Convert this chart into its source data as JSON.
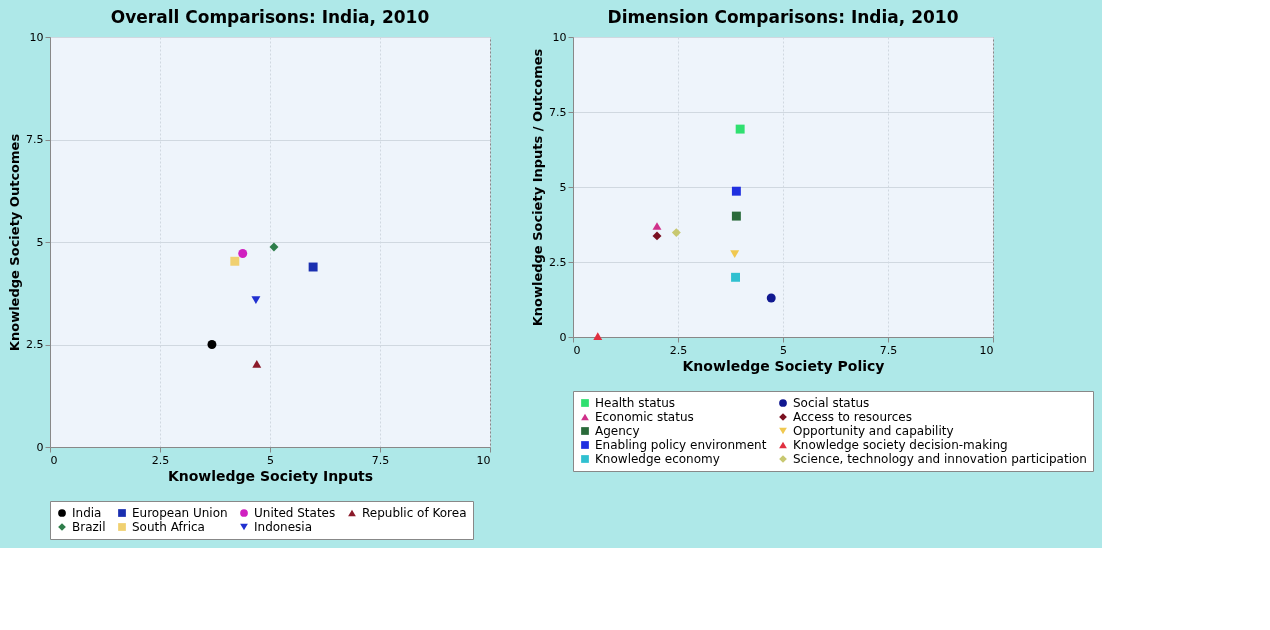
{
  "chart_data": [
    {
      "type": "scatter",
      "title": "Overall Comparisons: India, 2010",
      "xlabel": "Knowledge Society Inputs",
      "ylabel": "Knowledge Society Outcomes",
      "xlim": [
        0,
        10
      ],
      "ylim": [
        0,
        10
      ],
      "xticks": [
        0,
        2.5,
        5,
        7.5,
        10
      ],
      "yticks": [
        0,
        2.5,
        5,
        7.5,
        10
      ],
      "grid": true,
      "legend": "bottom",
      "series": [
        {
          "name": "India",
          "color": "#000000",
          "marker": "circle",
          "x": [
            3.68
          ],
          "values": [
            2.5
          ]
        },
        {
          "name": "European Union",
          "color": "#1a2fb0",
          "marker": "square",
          "x": [
            5.98
          ],
          "values": [
            4.39
          ]
        },
        {
          "name": "United States",
          "color": "#d020c0",
          "marker": "circle",
          "x": [
            4.38
          ],
          "values": [
            4.72
          ]
        },
        {
          "name": "Republic of Korea",
          "color": "#8b1a2a",
          "marker": "triangle",
          "x": [
            4.7
          ],
          "values": [
            2.03
          ]
        },
        {
          "name": "Brazil",
          "color": "#2e7d4a",
          "marker": "diamond",
          "x": [
            5.09
          ],
          "values": [
            4.88
          ]
        },
        {
          "name": "South Africa",
          "color": "#f0d070",
          "marker": "square",
          "x": [
            4.2
          ],
          "values": [
            4.53
          ]
        },
        {
          "name": "Indonesia",
          "color": "#2030d0",
          "marker": "triangle-down",
          "x": [
            4.68
          ],
          "values": [
            3.58
          ]
        }
      ]
    },
    {
      "type": "scatter",
      "title": "Dimension Comparisons: India, 2010",
      "xlabel": "Knowledge Society Policy",
      "ylabel": "Knowledge Society Inputs / Outcomes",
      "xlim": [
        0,
        10
      ],
      "ylim": [
        0,
        10
      ],
      "xticks": [
        0,
        2.5,
        5,
        7.5,
        10
      ],
      "yticks": [
        0,
        2.5,
        5,
        7.5,
        10
      ],
      "grid": true,
      "legend": "bottom",
      "series": [
        {
          "name": "Health status",
          "color": "#30e070",
          "marker": "square",
          "x": [
            3.98
          ],
          "values": [
            6.93
          ]
        },
        {
          "name": "Social status",
          "color": "#101890",
          "marker": "circle",
          "x": [
            4.72
          ],
          "values": [
            1.3
          ]
        },
        {
          "name": "Economic status",
          "color": "#d0308a",
          "marker": "triangle",
          "x": [
            2.0
          ],
          "values": [
            3.7
          ]
        },
        {
          "name": "Access to resources",
          "color": "#7a1020",
          "marker": "diamond",
          "x": [
            2.0
          ],
          "values": [
            3.37
          ]
        },
        {
          "name": "Agency",
          "color": "#2a6a3a",
          "marker": "square",
          "x": [
            3.89
          ],
          "values": [
            4.03
          ]
        },
        {
          "name": "Opportunity and capability",
          "color": "#f0c850",
          "marker": "triangle-down",
          "x": [
            3.85
          ],
          "values": [
            2.76
          ]
        },
        {
          "name": "Enabling policy environment",
          "color": "#2030e0",
          "marker": "square",
          "x": [
            3.89
          ],
          "values": [
            4.86
          ]
        },
        {
          "name": "Knowledge society decision-making",
          "color": "#e03040",
          "marker": "triangle",
          "x": [
            0.59
          ],
          "values": [
            0.03
          ]
        },
        {
          "name": "Knowledge economy",
          "color": "#30c0d0",
          "marker": "square",
          "x": [
            3.87
          ],
          "values": [
            1.99
          ]
        },
        {
          "name": "Science, technology and innovation participation",
          "color": "#c8c870",
          "marker": "diamond",
          "x": [
            2.46
          ],
          "values": [
            3.48
          ]
        }
      ]
    }
  ]
}
